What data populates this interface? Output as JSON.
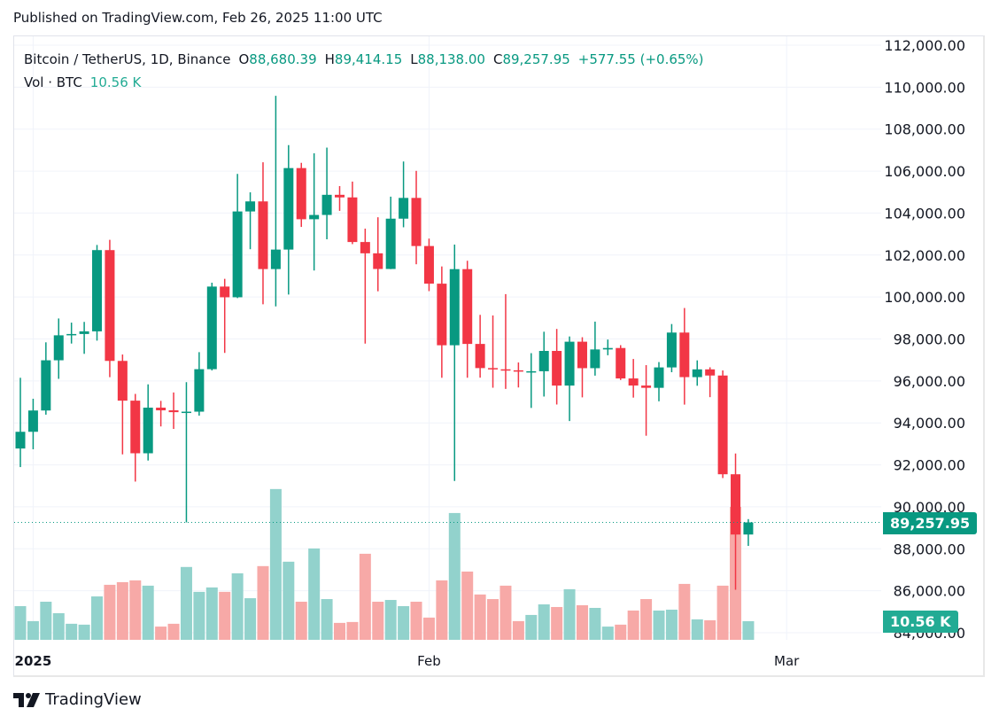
{
  "published": "Published on TradingView.com, Feb 26, 2025 11:00 UTC",
  "legend": {
    "symbol": "Bitcoin / TetherUS, 1D, Binance",
    "o_label": "O",
    "o": "88,680.39",
    "h_label": "H",
    "h": "89,414.15",
    "l_label": "L",
    "l": "88,138.00",
    "c_label": "C",
    "c": "89,257.95",
    "change": "+577.55 (+0.65%)",
    "vol_label": "Vol · BTC",
    "vol": "10.56 K"
  },
  "price_tag": "89,257.95",
  "volume_tag": "10.56 K",
  "logo_text": "TradingView",
  "colors": {
    "up": "#089981",
    "down": "#F23645",
    "vol_up": "#92D2CC",
    "vol_down": "#F7A9A7",
    "vol_tag": "#22AB94"
  },
  "chart_data": {
    "type": "candlestick",
    "y_axis": {
      "range": [
        84000,
        112000
      ],
      "ticks": [
        "112,000.00",
        "110,000.00",
        "108,000.00",
        "106,000.00",
        "104,000.00",
        "102,000.00",
        "100,000.00",
        "98,000.00",
        "96,000.00",
        "94,000.00",
        "92,000.00",
        "90,000.00",
        "88,000.00",
        "86,000.00",
        "84,000.00"
      ],
      "tick_values": [
        112000,
        110000,
        108000,
        106000,
        104000,
        102000,
        100000,
        98000,
        96000,
        94000,
        92000,
        90000,
        88000,
        86000,
        84000
      ],
      "position": "right"
    },
    "x_axis": {
      "ticks": [
        {
          "label": "2025",
          "date": "2025-01-01"
        },
        {
          "label": "Feb",
          "date": "2025-02-01"
        },
        {
          "label": "Mar",
          "date": "2025-03-01"
        }
      ]
    },
    "grid": true,
    "last_price": 89257.95,
    "dates": [
      "2024-12-31",
      "2025-01-01",
      "2025-01-02",
      "2025-01-03",
      "2025-01-04",
      "2025-01-05",
      "2025-01-06",
      "2025-01-07",
      "2025-01-08",
      "2025-01-09",
      "2025-01-10",
      "2025-01-11",
      "2025-01-12",
      "2025-01-13",
      "2025-01-14",
      "2025-01-15",
      "2025-01-16",
      "2025-01-17",
      "2025-01-18",
      "2025-01-19",
      "2025-01-20",
      "2025-01-21",
      "2025-01-22",
      "2025-01-23",
      "2025-01-24",
      "2025-01-25",
      "2025-01-26",
      "2025-01-27",
      "2025-01-28",
      "2025-01-29",
      "2025-01-30",
      "2025-01-31",
      "2025-02-01",
      "2025-02-02",
      "2025-02-03",
      "2025-02-04",
      "2025-02-05",
      "2025-02-06",
      "2025-02-07",
      "2025-02-08",
      "2025-02-09",
      "2025-02-10",
      "2025-02-11",
      "2025-02-12",
      "2025-02-13",
      "2025-02-14",
      "2025-02-15",
      "2025-02-16",
      "2025-02-17",
      "2025-02-18",
      "2025-02-19",
      "2025-02-20",
      "2025-02-21",
      "2025-02-22",
      "2025-02-23",
      "2025-02-24",
      "2025-02-25",
      "2025-02-26"
    ],
    "open": [
      92779,
      93576,
      94591,
      96984,
      98174,
      98236,
      98363,
      102235,
      96954,
      95060,
      92552,
      94726,
      94599,
      94511,
      94535,
      96560,
      100497,
      99987,
      104077,
      104556,
      101331,
      102260,
      106144,
      103706,
      103910,
      104870,
      104746,
      102620,
      102082,
      101335,
      103733,
      104722,
      102429,
      100635,
      97700,
      101328,
      97763,
      96612,
      96554,
      96506,
      96444,
      96462,
      97430,
      95778,
      97869,
      96608,
      97500,
      97569,
      96118,
      95780,
      95671,
      96644,
      98305,
      96181,
      96551,
      96258,
      91552,
      88680.39
    ],
    "high": [
      96150,
      95151,
      97839,
      98976,
      98778,
      98813,
      102480,
      102724,
      97259,
      95382,
      95837,
      95050,
      95450,
      95940,
      97371,
      100681,
      100866,
      105865,
      104988,
      106422,
      109588,
      107240,
      106394,
      106850,
      107120,
      105286,
      105500,
      103260,
      103800,
      104782,
      106457,
      106012,
      102783,
      101456,
      102500,
      101729,
      99149,
      99120,
      100137,
      96880,
      97323,
      98345,
      98478,
      98119,
      98083,
      98826,
      97972,
      97704,
      97046,
      96753,
      96899,
      98711,
      99475,
      96980,
      96650,
      96500,
      92540,
      89414.15
    ],
    "low": [
      91894,
      92743,
      94392,
      96100,
      97781,
      97291,
      97920,
      96181,
      92500,
      91203,
      92206,
      93831,
      93712,
      89256,
      94346,
      96500,
      97335,
      99950,
      102277,
      99651,
      99550,
      100119,
      103339,
      101262,
      102750,
      104106,
      102520,
      97777,
      100272,
      101328,
      103322,
      101560,
      100279,
      96150,
      91231,
      96150,
      96155,
      95676,
      95620,
      95688,
      94713,
      95256,
      94876,
      94088,
      95217,
      96252,
      97223,
      96046,
      95205,
      93388,
      95029,
      96415,
      94871,
      95770,
      95227,
      91371,
      86050,
      88138.0
    ],
    "close": [
      93576,
      94591,
      96984,
      98174,
      98236,
      98363,
      102235,
      96954,
      95060,
      92552,
      94726,
      94599,
      94511,
      94535,
      96560,
      100497,
      99987,
      104077,
      104556,
      101331,
      102260,
      106144,
      103706,
      103910,
      104870,
      104746,
      102620,
      102082,
      101335,
      103733,
      104722,
      102429,
      100635,
      97700,
      101328,
      97763,
      96612,
      96554,
      96506,
      96444,
      96462,
      97430,
      95778,
      97869,
      96608,
      97500,
      97569,
      96118,
      95780,
      95671,
      96644,
      98305,
      96181,
      96551,
      96258,
      91552,
      88680,
      89257.95
    ],
    "volume_k": [
      19.1,
      10.6,
      21.6,
      15.1,
      9.1,
      8.6,
      24.6,
      31.2,
      32.7,
      33.7,
      30.7,
      7.5,
      9.1,
      41.3,
      27.2,
      29.7,
      27.2,
      37.7,
      23.6,
      41.8,
      85.5,
      44.3,
      21.6,
      51.8,
      23.1,
      9.6,
      10.1,
      48.8,
      21.6,
      22.6,
      19.1,
      21.6,
      12.6,
      33.7,
      71.9,
      38.7,
      25.7,
      23.1,
      30.7,
      10.6,
      14.1,
      20.1,
      18.6,
      28.7,
      19.6,
      18.1,
      7.5,
      8.6,
      16.6,
      23.1,
      16.6,
      17.1,
      31.7,
      11.6,
      11.1,
      30.7,
      75.4,
      10.56
    ]
  }
}
